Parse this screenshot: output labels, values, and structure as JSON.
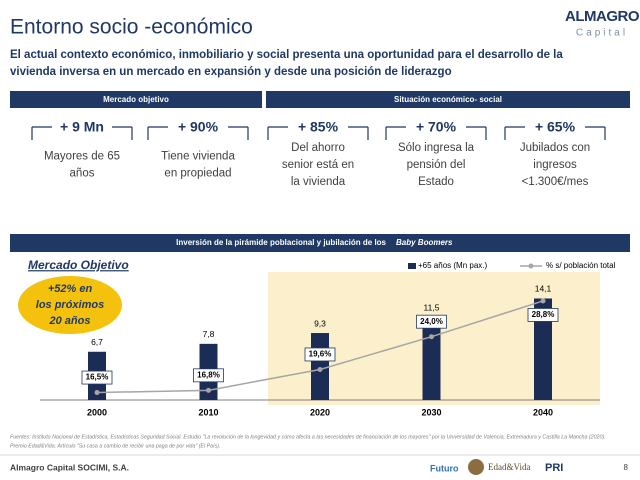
{
  "header": {
    "title": "Entorno socio -económico",
    "subtitle": [
      "El actual contexto económico, inmobiliario y social presenta una oportunidad para el desarrollo de la",
      "vivienda inversa en un mercado en expansión y desde una posición de liderazgo"
    ],
    "logo": [
      "ALMAGRO",
      "Capital"
    ]
  },
  "sections": [
    "Mercado objetivo",
    "Situación económico-  social"
  ],
  "kpis": [
    {
      "value": "+ 9 Mn",
      "lines": [
        "Mayores de 65",
        "años"
      ]
    },
    {
      "value": "+ 90%",
      "lines": [
        "Tiene vivienda",
        "en propiedad"
      ]
    },
    {
      "value": "+ 85%",
      "lines": [
        "Del ahorro",
        "senior está en",
        "la vivienda"
      ]
    },
    {
      "value": "+ 70%",
      "lines": [
        "Sólo ingresa la",
        "pensión del",
        "Estado"
      ]
    },
    {
      "value": "+ 65%",
      "lines": [
        "Jubilados con",
        "ingresos",
        "<1.300€/mes"
      ]
    }
  ],
  "band": {
    "text": "Inversión de la pirámide poblacional y jubilación de los",
    "emphasis": "Baby Boomers"
  },
  "chart_data": {
    "type": "bar",
    "title": "Mercado Objetivo",
    "callout": [
      "+52% en",
      "los próximos",
      "20 años"
    ],
    "categories": [
      "2000",
      "2010",
      "2020",
      "2030",
      "2040"
    ],
    "ylim": [
      0,
      15
    ],
    "y2lim": [
      15.5,
      30
    ],
    "series": [
      {
        "name": "+65 años (Mn pax.)",
        "type": "bar",
        "color": "#1b2d55",
        "values": [
          6.7,
          7.8,
          9.3,
          11.5,
          14.1
        ],
        "value_labels": [
          "6,7",
          "7,8",
          "9,3",
          "11,5",
          "14,1"
        ]
      },
      {
        "name": "% s/ población total",
        "type": "line",
        "axis": "y2",
        "color": "#a6a6a6",
        "values": [
          16.5,
          16.8,
          19.6,
          24.0,
          28.8
        ],
        "value_labels": [
          "16,5%",
          "16,8%",
          "19,6%",
          "24,0%",
          "28,8%"
        ]
      }
    ]
  },
  "footer": {
    "sources": [
      "Fuentes: Instituto Nacional de Estadística, Estadísticas Seguridad Social. Estudio \"La revolución de la longevidad y cómo afecta a las necesidades de financiación de los mayores\" por la Universidad de Valencia, Extremadura y Castilla La Mancha (2020).",
      "Premio Edad&Vida. Artículo \"Su casa a cambio de recibir una paga de por vida\" (El País)."
    ],
    "company": "Almagro Capital SOCIMI, S.A.",
    "page": "8",
    "logos": [
      "Futuro",
      "Edad&Vida",
      "PRI"
    ]
  }
}
